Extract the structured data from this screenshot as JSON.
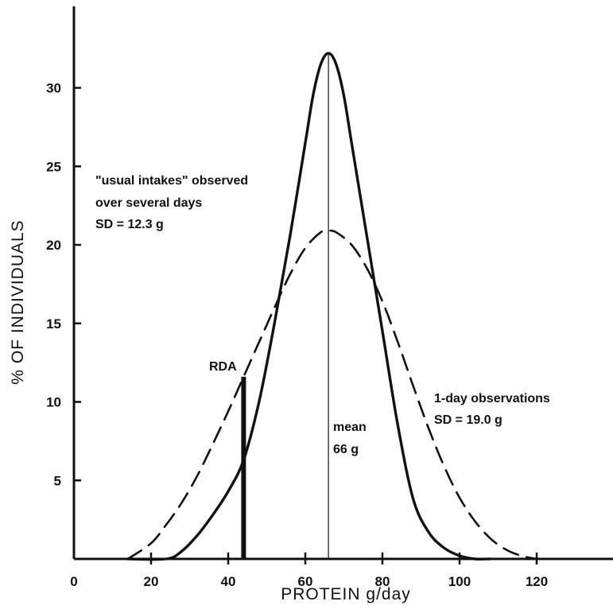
{
  "chart_data": {
    "type": "line",
    "title": "",
    "xlabel": "PROTEIN  g/day",
    "ylabel": "% OF INDIVIDUALS",
    "xlim": [
      0,
      140
    ],
    "ylim": [
      0,
      33
    ],
    "xticks": [
      0,
      20,
      40,
      60,
      80,
      100,
      120
    ],
    "yticks": [
      5,
      10,
      15,
      20,
      25,
      30
    ],
    "grid": false,
    "series": [
      {
        "style": "solid",
        "x": [
          14,
          24,
          28,
          32,
          36,
          40,
          44,
          48,
          52,
          56,
          60,
          62,
          64,
          66,
          68,
          70,
          72,
          76,
          80,
          84,
          88,
          92,
          96,
          100,
          104,
          108
        ],
        "y": [
          0,
          0,
          0.5,
          1.5,
          2.8,
          4.3,
          6.3,
          10.0,
          15.0,
          20.5,
          26.5,
          29.5,
          31.5,
          32.2,
          31.5,
          29.5,
          26.5,
          20.5,
          14.5,
          8.5,
          3.8,
          1.7,
          0.7,
          0.2,
          0.0,
          0
        ]
      },
      {
        "style": "dashed",
        "x": [
          14,
          20,
          24,
          28,
          32,
          36,
          40,
          44,
          48,
          52,
          56,
          60,
          64,
          66,
          68,
          72,
          76,
          80,
          84,
          88,
          92,
          96,
          100,
          104,
          108,
          112,
          116,
          120
        ],
        "y": [
          0,
          1.0,
          2.2,
          3.6,
          5.3,
          7.3,
          9.4,
          11.6,
          13.8,
          16.0,
          18.1,
          19.8,
          20.8,
          20.9,
          20.8,
          20.0,
          18.5,
          16.4,
          13.8,
          11.0,
          8.3,
          5.9,
          3.9,
          2.4,
          1.3,
          0.6,
          0.2,
          0
        ]
      }
    ],
    "annotations": [
      {
        "line1": "\"usual intakes\" observed",
        "line2": "over several days",
        "line3": "SD = 12.3 g"
      },
      {
        "line1": "1-day observations",
        "line2": "SD = 19.0 g"
      },
      {
        "line1": "mean",
        "line2": "66 g"
      },
      {
        "line1": "RDA"
      }
    ],
    "markers": [
      {
        "name": "RDA",
        "x": 44,
        "y": 11.6
      },
      {
        "name": "mean",
        "x": 66,
        "y": 32.2
      }
    ]
  }
}
